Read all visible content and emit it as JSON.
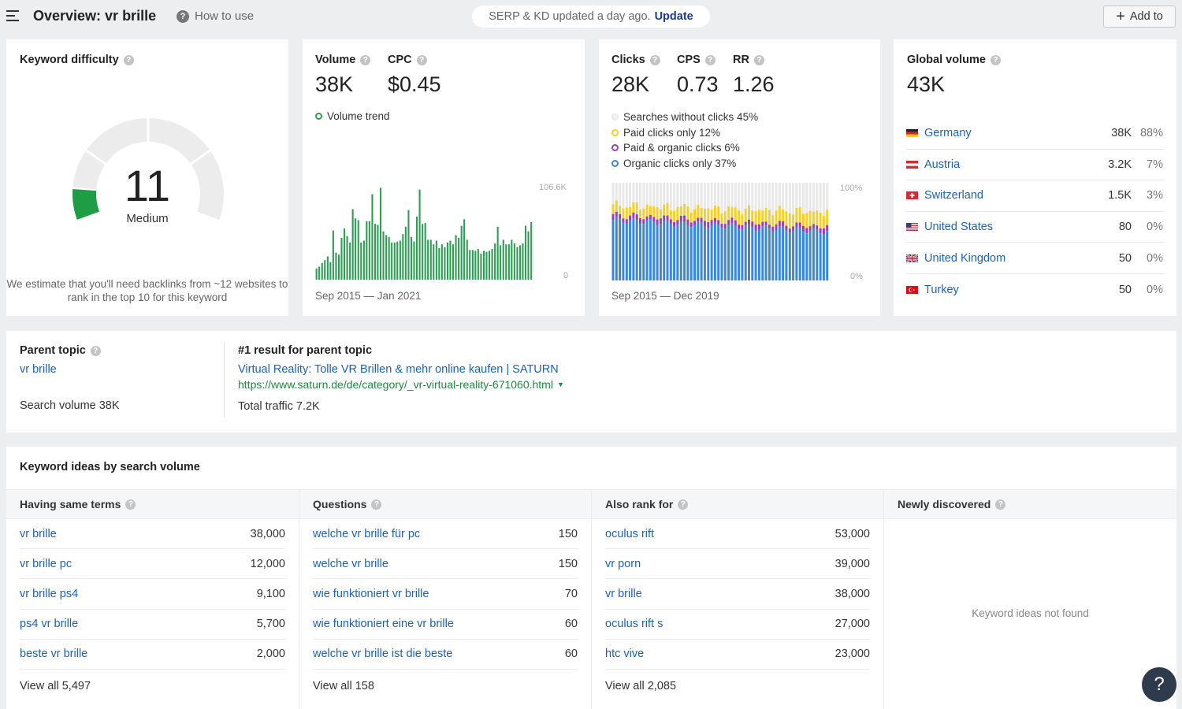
{
  "header": {
    "title": "Overview: vr brille",
    "how_to": "How to use",
    "serp_text": "SERP & KD updated a day ago.",
    "update_label": "Update",
    "add_label": "Add to"
  },
  "kd": {
    "label": "Keyword difficulty",
    "value": "11",
    "level": "Medium",
    "fill_percent": 11,
    "description": "We estimate that you'll need backlinks from ~12 websites to rank in the top 10 for this keyword"
  },
  "volume": {
    "label": "Volume",
    "value": "38K",
    "cpc_label": "CPC",
    "cpc_value": "$0.45",
    "trend_label": "Volume trend",
    "dates": "Sep 2015 — Jan 2021",
    "axis_max": "106.6K",
    "axis_min": "0",
    "color": "#2e9e55"
  },
  "clicks": {
    "label": "Clicks",
    "value": "28K",
    "cps_label": "CPS",
    "cps_value": "0.73",
    "rr_label": "RR",
    "rr_value": "1.26",
    "legend": [
      {
        "label": "Searches without clicks 45%",
        "color": "#e8e8e8"
      },
      {
        "label": "Paid clicks only 12%",
        "color": "#f2d12f"
      },
      {
        "label": "Paid & organic clicks 6%",
        "color": "#9b3fb5"
      },
      {
        "label": "Organic clicks only 37%",
        "color": "#3b88d8"
      }
    ],
    "dates": "Sep 2015 — Dec 2019",
    "axis_max": "100%",
    "axis_min": "0%"
  },
  "global": {
    "label": "Global volume",
    "value": "43K",
    "countries": [
      {
        "name": "Germany",
        "volume": "38K",
        "pct": "88%",
        "flag": "de-flag"
      },
      {
        "name": "Austria",
        "volume": "3.2K",
        "pct": "7%",
        "flag": "at-flag"
      },
      {
        "name": "Switzerland",
        "volume": "1.5K",
        "pct": "3%",
        "flag": "ch-flag"
      },
      {
        "name": "United States",
        "volume": "80",
        "pct": "0%",
        "flag": "us-flag"
      },
      {
        "name": "United Kingdom",
        "volume": "50",
        "pct": "0%",
        "flag": "uk-flag"
      },
      {
        "name": "Turkey",
        "volume": "50",
        "pct": "0%",
        "flag": "tr-flag"
      }
    ]
  },
  "parent": {
    "label": "Parent topic",
    "topic": "vr brille",
    "search_volume": "Search volume 38K",
    "result_label": "#1 result for parent topic",
    "result_title": "Virtual Reality: Tolle VR Brillen & mehr online kaufen | SATURN",
    "result_url": "https://www.saturn.de/de/category/_vr-virtual-reality-671060.html",
    "total_traffic": "Total traffic 7.2K"
  },
  "ideas": {
    "title": "Keyword ideas by search volume",
    "columns": [
      {
        "heading": "Having same terms",
        "rows": [
          {
            "kw": "vr brille",
            "n": "38,000"
          },
          {
            "kw": "vr brille pc",
            "n": "12,000"
          },
          {
            "kw": "vr brille ps4",
            "n": "9,100"
          },
          {
            "kw": "ps4 vr brille",
            "n": "5,700"
          },
          {
            "kw": "beste vr brille",
            "n": "2,000"
          }
        ],
        "view_all": "View all 5,497"
      },
      {
        "heading": "Questions",
        "rows": [
          {
            "kw": "welche vr brille für pc",
            "n": "150"
          },
          {
            "kw": "welche vr brille",
            "n": "150"
          },
          {
            "kw": "wie funktioniert vr brille",
            "n": "70"
          },
          {
            "kw": "wie funktioniert eine vr brille",
            "n": "60"
          },
          {
            "kw": "welche vr brille ist die beste",
            "n": "60"
          }
        ],
        "view_all": "View all 158"
      },
      {
        "heading": "Also rank for",
        "rows": [
          {
            "kw": "oculus rift",
            "n": "53,000"
          },
          {
            "kw": "vr porn",
            "n": "39,000"
          },
          {
            "kw": "vr brille",
            "n": "38,000"
          },
          {
            "kw": "oculus rift s",
            "n": "27,000"
          },
          {
            "kw": "htc vive",
            "n": "23,000"
          }
        ],
        "view_all": "View all 2,085"
      },
      {
        "heading": "Newly discovered",
        "empty_text": "Keyword ideas not found"
      }
    ]
  },
  "help_label": "?"
}
